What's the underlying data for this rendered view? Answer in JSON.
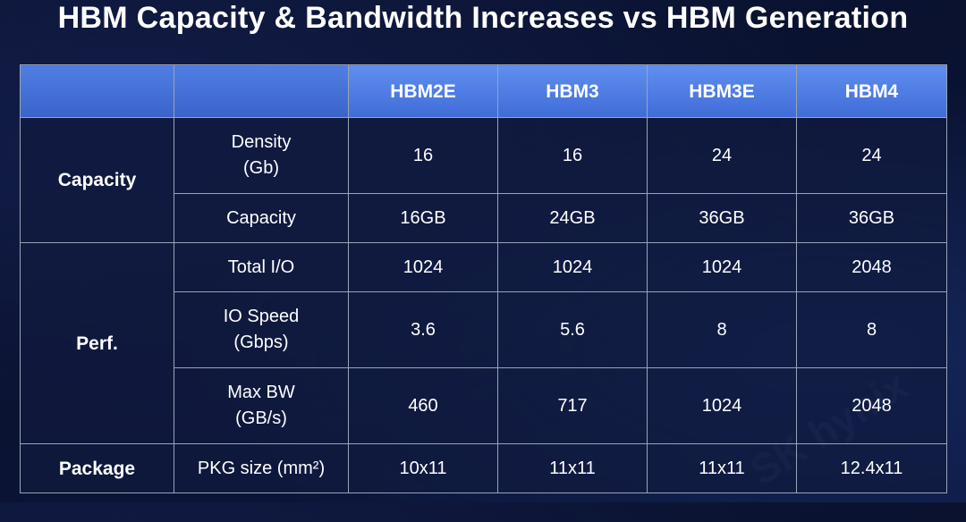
{
  "title": "HBM Capacity & Bandwidth Increases vs HBM Generation",
  "watermark": "SK hynix",
  "table": {
    "headers": [
      "",
      "",
      "HBM2E",
      "HBM3",
      "HBM3E",
      "HBM4"
    ],
    "groups": {
      "capacity": "Capacity",
      "perf": "Perf.",
      "package": "Package"
    },
    "rows": [
      {
        "label": "Density\n(Gb)",
        "values": [
          "16",
          "16",
          "24",
          "24"
        ]
      },
      {
        "label": "Capacity",
        "values": [
          "16GB",
          "24GB",
          "36GB",
          "36GB"
        ]
      },
      {
        "label": "Total I/O",
        "values": [
          "1024",
          "1024",
          "1024",
          "2048"
        ]
      },
      {
        "label": "IO Speed\n(Gbps)",
        "values": [
          "3.6",
          "5.6",
          "8",
          "8"
        ]
      },
      {
        "label": "Max BW\n(GB/s)",
        "values": [
          "460",
          "717",
          "1024",
          "2048"
        ]
      },
      {
        "label": "PKG size (mm²)",
        "values": [
          "10x11",
          "11x11",
          "11x11",
          "12.4x11"
        ]
      }
    ]
  }
}
